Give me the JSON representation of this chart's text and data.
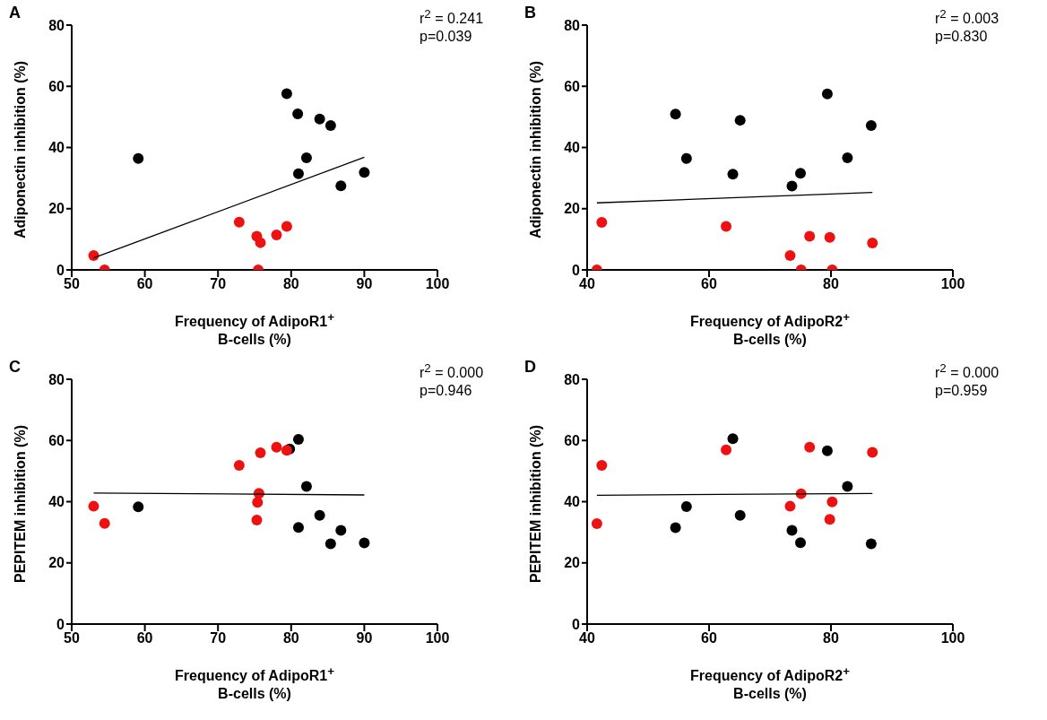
{
  "chart_data": [
    {
      "type": "scatter",
      "title": "A",
      "xlabel": "Frequency of AdipoR1$^{+}$\nB-cells (%)",
      "ylabel": "Adiponectin inhibition (%)",
      "annotations": [
        "r$^{2}$ = 0.241",
        "p=0.039"
      ],
      "xlim": [
        50,
        100
      ],
      "xticks": [
        50,
        60,
        70,
        80,
        90,
        100
      ],
      "ylim": [
        0,
        80
      ],
      "yticks": [
        0,
        20,
        40,
        60,
        80
      ],
      "grid": false,
      "series": [
        {
          "marker": "circle",
          "color": "#000000",
          "x": [
            79.4,
            80.9,
            83.9,
            85.4,
            59.1,
            82.1,
            81.0,
            90.0,
            86.8
          ],
          "values": [
            57.6,
            51.0,
            49.3,
            47.2,
            36.4,
            36.6,
            31.4,
            31.9,
            27.5
          ]
        },
        {
          "marker": "circle",
          "color": "#ee1111",
          "x": [
            53.0,
            54.5,
            72.9,
            75.3,
            75.8,
            78.0,
            79.4,
            75.5
          ],
          "values": [
            4.7,
            0,
            15.6,
            11.0,
            8.9,
            11.4,
            14.2,
            0
          ]
        },
        {
          "type": "line",
          "marker": "none",
          "color": "#000000",
          "x": [
            53.0,
            90.0
          ],
          "values": [
            3.9,
            36.8
          ]
        }
      ]
    },
    {
      "type": "scatter",
      "title": "B",
      "xlabel": "Frequency of AdipoR2$^{+}$\nB-cells (%)",
      "ylabel": "Adiponectin inhibition (%)",
      "annotations": [
        "r$^{2}$ = 0.003",
        "p=0.830"
      ],
      "xlim": [
        40,
        100
      ],
      "xticks": [
        40,
        60,
        80,
        100
      ],
      "ylim": [
        0,
        80
      ],
      "yticks": [
        0,
        20,
        40,
        60,
        80
      ],
      "grid": false,
      "series": [
        {
          "marker": "circle",
          "color": "#000000",
          "x": [
            54.5,
            56.3,
            65.1,
            63.9,
            73.6,
            75.0,
            79.4,
            82.7,
            86.6
          ],
          "values": [
            50.9,
            36.4,
            48.9,
            31.3,
            27.4,
            31.6,
            57.5,
            36.6,
            47.2
          ]
        },
        {
          "marker": "circle",
          "color": "#ee1111",
          "x": [
            41.6,
            42.4,
            62.8,
            73.3,
            75.1,
            76.5,
            79.8,
            80.2,
            86.8
          ],
          "values": [
            0,
            15.5,
            14.2,
            4.7,
            0,
            11.0,
            10.6,
            0,
            8.8
          ]
        },
        {
          "type": "line",
          "marker": "none",
          "color": "#000000",
          "x": [
            41.6,
            86.8
          ],
          "values": [
            21.9,
            25.3
          ]
        }
      ]
    },
    {
      "type": "scatter",
      "title": "C",
      "xlabel": "Frequency of AdipoR1$^{+}$\nB-cells (%)",
      "ylabel": "PEPITEM inhibition (%)",
      "annotations": [
        "r$^{2}$ = 0.000",
        "p=0.946"
      ],
      "xlim": [
        50,
        100
      ],
      "xticks": [
        50,
        60,
        70,
        80,
        90,
        100
      ],
      "ylim": [
        0,
        80
      ],
      "yticks": [
        0,
        20,
        40,
        60,
        80
      ],
      "grid": false,
      "series": [
        {
          "marker": "circle",
          "color": "#000000",
          "x": [
            59.1,
            81.0,
            82.1,
            81.0,
            83.9,
            85.4,
            86.8,
            90.0,
            79.8
          ],
          "values": [
            38.3,
            60.4,
            45.0,
            31.6,
            35.5,
            26.2,
            30.6,
            26.5,
            57.2
          ]
        },
        {
          "marker": "circle",
          "color": "#ee1111",
          "x": [
            53.0,
            54.5,
            72.9,
            75.8,
            78.0,
            79.4,
            75.6,
            75.4,
            75.3
          ],
          "values": [
            38.5,
            32.9,
            51.9,
            56.0,
            57.8,
            56.8,
            42.7,
            39.8,
            34.0
          ]
        },
        {
          "type": "line",
          "marker": "none",
          "color": "#000000",
          "x": [
            53.0,
            90.0
          ],
          "values": [
            42.8,
            42.2
          ]
        }
      ]
    },
    {
      "type": "scatter",
      "title": "D",
      "xlabel": "Frequency of AdipoR2$^{+}$\nB-cells (%)",
      "ylabel": "PEPITEM inhibition (%)",
      "annotations": [
        "r$^{2}$ = 0.000",
        "p=0.959"
      ],
      "xlim": [
        40,
        100
      ],
      "xticks": [
        40,
        60,
        80,
        100
      ],
      "ylim": [
        0,
        80
      ],
      "yticks": [
        0,
        20,
        40,
        60,
        80
      ],
      "grid": false,
      "series": [
        {
          "marker": "circle",
          "color": "#000000",
          "x": [
            54.5,
            56.3,
            63.9,
            65.1,
            73.6,
            75.0,
            79.4,
            82.7,
            86.6
          ],
          "values": [
            31.5,
            38.4,
            60.6,
            35.5,
            30.6,
            26.6,
            56.6,
            45.0,
            26.2
          ]
        },
        {
          "marker": "circle",
          "color": "#ee1111",
          "x": [
            41.6,
            42.4,
            62.8,
            76.5,
            86.8,
            73.3,
            75.1,
            80.2,
            79.8
          ],
          "values": [
            32.8,
            51.9,
            56.9,
            57.8,
            56.1,
            38.5,
            42.6,
            39.9,
            34.2
          ]
        },
        {
          "type": "line",
          "marker": "none",
          "color": "#000000",
          "x": [
            41.6,
            86.8
          ],
          "values": [
            42.1,
            42.7
          ]
        }
      ]
    }
  ]
}
